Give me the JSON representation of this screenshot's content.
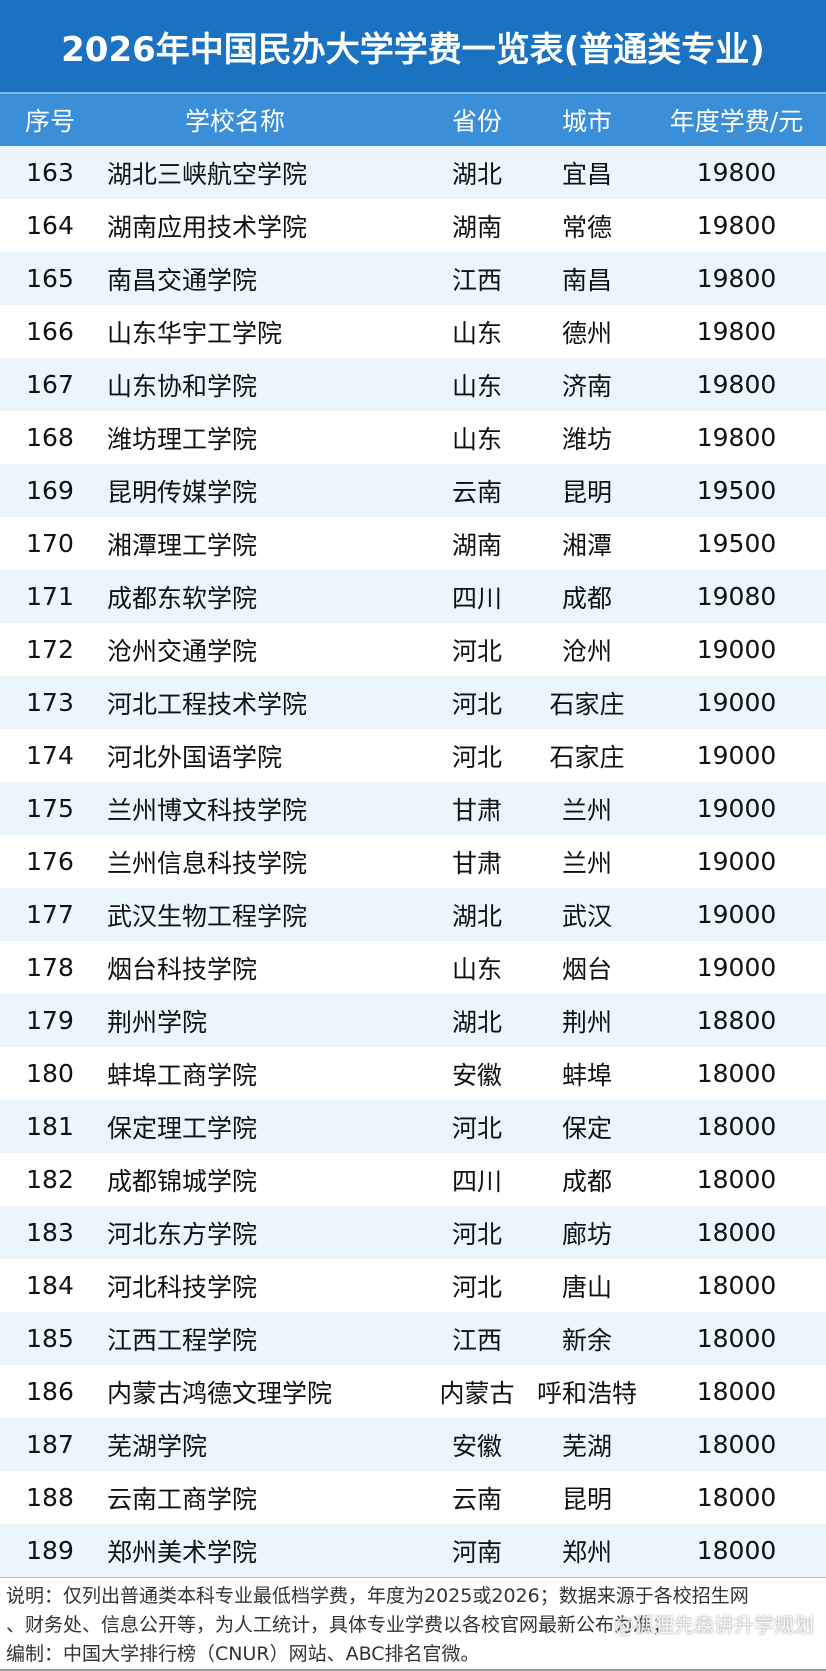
{
  "title": "2026年中国民办大学学费一览表(普通类专业)",
  "headers": [
    "序号",
    "学校名称",
    "省份",
    "城市",
    "年度学费/元"
  ],
  "rows": [
    [
      "163",
      "湖北三峡航空学院",
      "湖北",
      "宜昌",
      "19800"
    ],
    [
      "164",
      "湖南应用技术学院",
      "湖南",
      "常德",
      "19800"
    ],
    [
      "165",
      "南昌交通学院",
      "江西",
      "南昌",
      "19800"
    ],
    [
      "166",
      "山东华宇工学院",
      "山东",
      "德州",
      "19800"
    ],
    [
      "167",
      "山东协和学院",
      "山东",
      "济南",
      "19800"
    ],
    [
      "168",
      "潍坊理工学院",
      "山东",
      "潍坊",
      "19800"
    ],
    [
      "169",
      "昆明传媒学院",
      "云南",
      "昆明",
      "19500"
    ],
    [
      "170",
      "湘潭理工学院",
      "湖南",
      "湘潭",
      "19500"
    ],
    [
      "171",
      "成都东软学院",
      "四川",
      "成都",
      "19080"
    ],
    [
      "172",
      "沧州交通学院",
      "河北",
      "沧州",
      "19000"
    ],
    [
      "173",
      "河北工程技术学院",
      "河北",
      "石家庄",
      "19000"
    ],
    [
      "174",
      "河北外国语学院",
      "河北",
      "石家庄",
      "19000"
    ],
    [
      "175",
      "兰州博文科技学院",
      "甘肃",
      "兰州",
      "19000"
    ],
    [
      "176",
      "兰州信息科技学院",
      "甘肃",
      "兰州",
      "19000"
    ],
    [
      "177",
      "武汉生物工程学院",
      "湖北",
      "武汉",
      "19000"
    ],
    [
      "178",
      "烟台科技学院",
      "山东",
      "烟台",
      "19000"
    ],
    [
      "179",
      "荆州学院",
      "湖北",
      "荆州",
      "18800"
    ],
    [
      "180",
      "蚌埠工商学院",
      "安徽",
      "蚌埠",
      "18000"
    ],
    [
      "181",
      "保定理工学院",
      "河北",
      "保定",
      "18000"
    ],
    [
      "182",
      "成都锦城学院",
      "四川",
      "成都",
      "18000"
    ],
    [
      "183",
      "河北东方学院",
      "河北",
      "廊坊",
      "18000"
    ],
    [
      "184",
      "河北科技学院",
      "河北",
      "唐山",
      "18000"
    ],
    [
      "185",
      "江西工程学院",
      "江西",
      "新余",
      "18000"
    ],
    [
      "186",
      "内蒙古鸿德文理学院",
      "内蒙古",
      "呼和浩特",
      "18000"
    ],
    [
      "187",
      "芜湖学院",
      "安徽",
      "芜湖",
      "18000"
    ],
    [
      "188",
      "云南工商学院",
      "云南",
      "昆明",
      "18000"
    ],
    [
      "189",
      "郑州美术学院",
      "河南",
      "郑州",
      "18000"
    ]
  ],
  "footer": [
    "说明：仅列出普通类本科专业最低档学费，年度为2025或2026；数据来源于各校招生网",
    "、财务处、信息公开等，为人工统计，具体专业学费以各校官网最新公布为准；",
    "编制：中国大学排行榜（CNUR）网站、ABC排名官微。"
  ],
  "watermark": "@狐狸先森讲升学规划"
}
